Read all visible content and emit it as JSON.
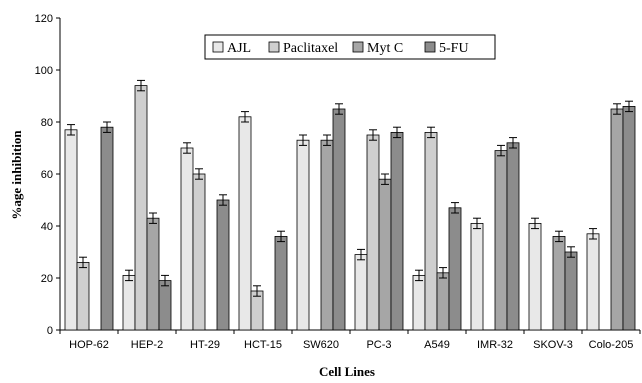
{
  "chart_data": {
    "type": "bar",
    "title": "",
    "xlabel": "Cell Lines",
    "ylabel": "%age inhibition",
    "ylim": [
      0,
      120
    ],
    "yticks": [
      0,
      20,
      40,
      60,
      80,
      100,
      120
    ],
    "grid": false,
    "legend_position": "top-center",
    "categories": [
      "HOP-62",
      "HEP-2",
      "HT-29",
      "HCT-15",
      "SW620",
      "PC-3",
      "A549",
      "IMR-32",
      "SKOV-3",
      "Colo-205"
    ],
    "series": [
      {
        "name": "AJL",
        "color": "#e8e8e8",
        "values": [
          77,
          21,
          70,
          82,
          73,
          29,
          21,
          41,
          41,
          37
        ],
        "errors": [
          2,
          2,
          2,
          2,
          2,
          2,
          2,
          2,
          2,
          2
        ]
      },
      {
        "name": "Paclitaxel",
        "color": "#cfcfcf",
        "values": [
          26,
          94,
          60,
          15,
          0,
          75,
          76,
          0,
          0,
          0
        ],
        "errors": [
          2,
          2,
          2,
          2,
          0,
          2,
          2,
          0,
          0,
          0
        ]
      },
      {
        "name": "Myt C",
        "color": "#a6a6a6",
        "values": [
          0,
          43,
          0,
          0,
          73,
          58,
          22,
          69,
          36,
          85
        ],
        "errors": [
          0,
          2,
          0,
          0,
          2,
          2,
          2,
          2,
          2,
          2
        ]
      },
      {
        "name": "5-FU",
        "color": "#8c8c8c",
        "values": [
          78,
          19,
          50,
          36,
          85,
          76,
          47,
          72,
          30,
          86
        ],
        "errors": [
          2,
          2,
          2,
          2,
          2,
          2,
          2,
          2,
          2,
          2
        ]
      }
    ]
  }
}
